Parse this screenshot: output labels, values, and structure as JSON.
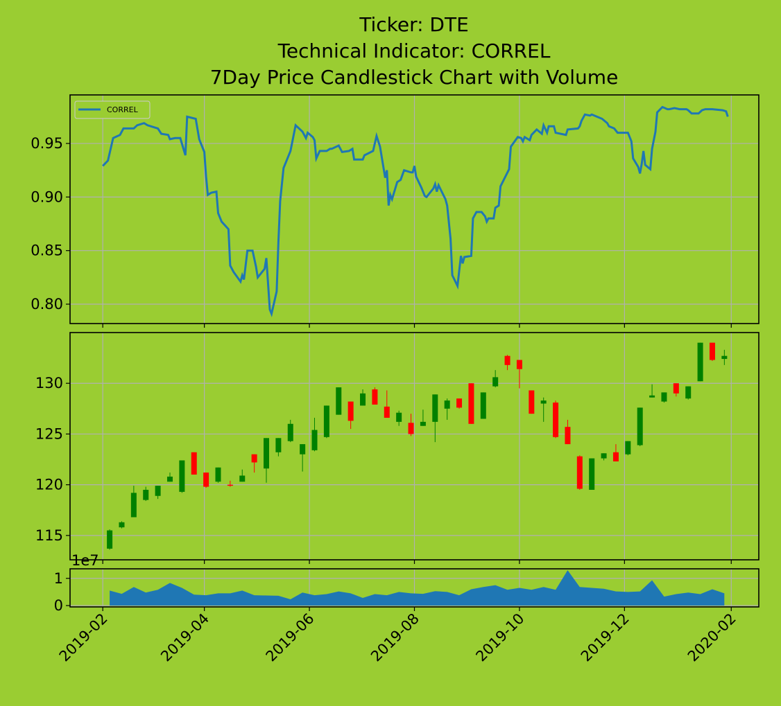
{
  "chart_data": [
    {
      "type": "line",
      "title": [
        "Ticker: DTE",
        "Technical Indicator: CORREL",
        "7Day Price Candlestick Chart with Volume"
      ],
      "xlim": [
        "2019-01-13",
        "2020-02-17"
      ],
      "xticks": [
        {
          "value": "2019-02-01",
          "label": "2019-02"
        },
        {
          "value": "2019-04-01",
          "label": "2019-04"
        },
        {
          "value": "2019-06-01",
          "label": "2019-06"
        },
        {
          "value": "2019-08-01",
          "label": "2019-08"
        },
        {
          "value": "2019-10-01",
          "label": "2019-10"
        },
        {
          "value": "2019-12-01",
          "label": "2019-12"
        },
        {
          "value": "2020-02-01",
          "label": "2020-02"
        }
      ],
      "ylim": [
        0.7819,
        0.9953
      ],
      "yticks": [
        {
          "value": 0.8,
          "label": "0.80"
        },
        0.85,
        {
          "value": 0.9,
          "label": "0.90"
        },
        0.95
      ],
      "grid": true,
      "legend": "upper left",
      "x": [
        "2019-02-01",
        "2019-02-04",
        "2019-02-07",
        "2019-02-11",
        "2019-02-13",
        "2019-02-19",
        "2019-02-21",
        "2019-02-25",
        "2019-02-27",
        "2019-03-05",
        "2019-03-07",
        "2019-03-11",
        "2019-03-12",
        "2019-03-15",
        "2019-03-18",
        "2019-03-21",
        "2019-03-22",
        "2019-03-27",
        "2019-03-29",
        "2019-04-01",
        "2019-04-02",
        "2019-04-03",
        "2019-04-05",
        "2019-04-08",
        "2019-04-09",
        "2019-04-11",
        "2019-04-15",
        "2019-04-16",
        "2019-04-18",
        "2019-04-22",
        "2019-04-23",
        "2019-04-24",
        "2019-04-26",
        "2019-04-29",
        "2019-05-01",
        "2019-05-02",
        "2019-05-06",
        "2019-05-07",
        "2019-05-09",
        "2019-05-10",
        "2019-05-13",
        "2019-05-14",
        "2019-05-15",
        "2019-05-17",
        "2019-05-21",
        "2019-05-24",
        "2019-05-28",
        "2019-05-30",
        "2019-05-31",
        "2019-06-03",
        "2019-06-04",
        "2019-06-05",
        "2019-06-07",
        "2019-06-11",
        "2019-06-13",
        "2019-06-14",
        "2019-06-18",
        "2019-06-20",
        "2019-06-24",
        "2019-06-26",
        "2019-06-27",
        "2019-07-02",
        "2019-07-03",
        "2019-07-08",
        "2019-07-10",
        "2019-07-12",
        "2019-07-15",
        "2019-07-16",
        "2019-07-17",
        "2019-07-18",
        "2019-07-19",
        "2019-07-22",
        "2019-07-24",
        "2019-07-26",
        "2019-07-30",
        "2019-07-31",
        "2019-08-01",
        "2019-08-02",
        "2019-08-05",
        "2019-08-07",
        "2019-08-08",
        "2019-08-12",
        "2019-08-13",
        "2019-08-14",
        "2019-08-15",
        "2019-08-19",
        "2019-08-20",
        "2019-08-22",
        "2019-08-23",
        "2019-08-26",
        "2019-08-28",
        "2019-08-29",
        "2019-08-30",
        "2019-09-03",
        "2019-09-04",
        "2019-09-06",
        "2019-09-09",
        "2019-09-11",
        "2019-09-12",
        "2019-09-13",
        "2019-09-16",
        "2019-09-17",
        "2019-09-19",
        "2019-09-20",
        "2019-09-25",
        "2019-09-26",
        "2019-09-30",
        "2019-10-02",
        "2019-10-03",
        "2019-10-04",
        "2019-10-07",
        "2019-10-08",
        "2019-10-11",
        "2019-10-14",
        "2019-10-15",
        "2019-10-17",
        "2019-10-18",
        "2019-10-21",
        "2019-10-22",
        "2019-10-28",
        "2019-10-29",
        "2019-11-04",
        "2019-11-05",
        "2019-11-06",
        "2019-11-08",
        "2019-11-11",
        "2019-11-12",
        "2019-11-15",
        "2019-11-18",
        "2019-11-21",
        "2019-11-22",
        "2019-11-25",
        "2019-11-27",
        "2019-12-03",
        "2019-12-05",
        "2019-12-06",
        "2019-12-09",
        "2019-12-10",
        "2019-12-11",
        "2019-12-12",
        "2019-12-13",
        "2019-12-16",
        "2019-12-17",
        "2019-12-19",
        "2019-12-20",
        "2019-12-23",
        "2019-12-26",
        "2019-12-27",
        "2019-12-30",
        "2020-01-02",
        "2020-01-06",
        "2020-01-07",
        "2020-01-09",
        "2020-01-13",
        "2020-01-15",
        "2020-01-17",
        "2020-01-21",
        "2020-01-27",
        "2020-01-29",
        "2020-01-30"
      ],
      "series": [
        {
          "name": "CORREL",
          "color": "#1f77b4",
          "values": [
            0.929,
            0.934,
            0.955,
            0.958,
            0.964,
            0.964,
            0.967,
            0.969,
            0.967,
            0.964,
            0.959,
            0.958,
            0.954,
            0.955,
            0.955,
            0.939,
            0.975,
            0.973,
            0.954,
            0.942,
            0.919,
            0.902,
            0.904,
            0.905,
            0.885,
            0.877,
            0.87,
            0.836,
            0.83,
            0.821,
            0.827,
            0.823,
            0.85,
            0.85,
            0.835,
            0.825,
            0.833,
            0.843,
            0.795,
            0.791,
            0.812,
            0.858,
            0.896,
            0.927,
            0.943,
            0.967,
            0.961,
            0.955,
            0.96,
            0.956,
            0.953,
            0.936,
            0.943,
            0.943,
            0.945,
            0.945,
            0.948,
            0.942,
            0.943,
            0.945,
            0.935,
            0.935,
            0.939,
            0.943,
            0.957,
            0.947,
            0.918,
            0.925,
            0.892,
            0.902,
            0.898,
            0.914,
            0.916,
            0.925,
            0.923,
            0.923,
            0.929,
            0.919,
            0.909,
            0.901,
            0.9,
            0.908,
            0.912,
            0.905,
            0.911,
            0.898,
            0.892,
            0.861,
            0.827,
            0.817,
            0.845,
            0.838,
            0.844,
            0.845,
            0.88,
            0.886,
            0.886,
            0.882,
            0.877,
            0.88,
            0.88,
            0.89,
            0.892,
            0.91,
            0.926,
            0.947,
            0.956,
            0.955,
            0.952,
            0.956,
            0.953,
            0.958,
            0.963,
            0.959,
            0.967,
            0.96,
            0.966,
            0.966,
            0.96,
            0.958,
            0.963,
            0.964,
            0.966,
            0.971,
            0.977,
            0.976,
            0.977,
            0.975,
            0.973,
            0.969,
            0.966,
            0.964,
            0.96,
            0.96,
            0.952,
            0.936,
            0.928,
            0.922,
            0.931,
            0.943,
            0.93,
            0.926,
            0.945,
            0.961,
            0.979,
            0.984,
            0.982,
            0.982,
            0.983,
            0.982,
            0.982,
            0.981,
            0.978,
            0.978,
            0.981,
            0.982,
            0.982,
            0.981,
            0.98,
            0.975
          ]
        }
      ]
    },
    {
      "type": "candlestick",
      "xlim": [
        "2019-01-13",
        "2020-02-17"
      ],
      "xticks": [
        {
          "value": "2019-02-01",
          "label": "2019-02"
        },
        {
          "value": "2019-04-01",
          "label": "2019-04"
        },
        {
          "value": "2019-06-01",
          "label": "2019-06"
        },
        {
          "value": "2019-08-01",
          "label": "2019-08"
        },
        {
          "value": "2019-10-01",
          "label": "2019-10"
        },
        {
          "value": "2019-12-01",
          "label": "2019-12"
        },
        {
          "value": "2020-02-01",
          "label": "2020-02"
        }
      ],
      "ylim": [
        112.6,
        135
      ],
      "yticks": [
        115,
        120,
        125,
        130
      ],
      "grid": true,
      "up_color": "#008000",
      "down_color": "#ff0000",
      "x": [
        "2019-02-05",
        "2019-02-12",
        "2019-02-19",
        "2019-02-26",
        "2019-03-05",
        "2019-03-12",
        "2019-03-19",
        "2019-03-26",
        "2019-04-02",
        "2019-04-09",
        "2019-04-16",
        "2019-04-23",
        "2019-04-30",
        "2019-05-07",
        "2019-05-14",
        "2019-05-21",
        "2019-05-28",
        "2019-06-04",
        "2019-06-11",
        "2019-06-18",
        "2019-06-25",
        "2019-07-02",
        "2019-07-09",
        "2019-07-16",
        "2019-07-23",
        "2019-07-30",
        "2019-08-06",
        "2019-08-13",
        "2019-08-20",
        "2019-08-27",
        "2019-09-03",
        "2019-09-10",
        "2019-09-17",
        "2019-09-24",
        "2019-10-01",
        "2019-10-08",
        "2019-10-15",
        "2019-10-22",
        "2019-10-29",
        "2019-11-05",
        "2019-11-12",
        "2019-11-19",
        "2019-11-26",
        "2019-12-03",
        "2019-12-10",
        "2019-12-17",
        "2019-12-24",
        "2019-12-31",
        "2020-01-07",
        "2020-01-14",
        "2020-01-21",
        "2020-01-28"
      ],
      "open": [
        113.7,
        115.8,
        116.8,
        118.5,
        118.9,
        120.3,
        119.3,
        123.2,
        121.2,
        120.3,
        120.0,
        120.3,
        123.0,
        121.6,
        123.2,
        124.3,
        123.0,
        123.4,
        124.7,
        126.9,
        128.2,
        127.8,
        129.4,
        127.7,
        126.2,
        126.1,
        125.8,
        126.2,
        127.5,
        128.5,
        130.0,
        126.5,
        129.7,
        132.7,
        132.3,
        129.3,
        128.0,
        128.1,
        125.7,
        122.8,
        119.5,
        122.6,
        123.2,
        123.0,
        123.9,
        128.6,
        128.2,
        130.0,
        128.5,
        130.2,
        134.0,
        132.4
      ],
      "high": [
        115.6,
        116.4,
        119.9,
        119.8,
        119.9,
        121.2,
        122.4,
        123.2,
        121.2,
        121.7,
        120.4,
        121.5,
        123.0,
        124.6,
        124.6,
        126.4,
        124.0,
        126.6,
        127.8,
        129.6,
        128.2,
        129.4,
        129.6,
        129.3,
        127.3,
        127.0,
        127.4,
        128.9,
        128.5,
        128.5,
        130.0,
        129.1,
        131.3,
        132.8,
        132.3,
        129.3,
        128.6,
        128.3,
        126.4,
        122.9,
        122.6,
        123.1,
        124.0,
        124.3,
        127.6,
        129.9,
        129.1,
        130.0,
        129.7,
        134.0,
        134.0,
        133.3
      ],
      "low": [
        113.6,
        115.7,
        116.8,
        118.4,
        118.6,
        120.3,
        119.2,
        121.0,
        119.7,
        120.2,
        119.8,
        120.3,
        121.2,
        120.2,
        122.8,
        124.2,
        121.3,
        123.3,
        124.6,
        126.9,
        125.5,
        127.8,
        127.9,
        126.6,
        125.8,
        124.8,
        125.8,
        124.2,
        126.4,
        127.5,
        126.0,
        126.5,
        129.6,
        131.3,
        129.5,
        127.0,
        126.2,
        124.6,
        124.0,
        119.5,
        119.5,
        122.4,
        122.3,
        122.9,
        123.8,
        128.6,
        128.1,
        128.7,
        128.4,
        130.2,
        132.2,
        131.8
      ],
      "close": [
        115.5,
        116.3,
        119.2,
        119.5,
        119.9,
        120.8,
        122.4,
        121.0,
        119.8,
        121.7,
        119.9,
        120.9,
        122.2,
        124.6,
        124.6,
        126.0,
        124.0,
        125.4,
        127.8,
        129.6,
        126.3,
        129.0,
        127.9,
        126.6,
        127.1,
        125.0,
        126.2,
        128.9,
        128.3,
        127.6,
        126.0,
        129.1,
        130.6,
        131.8,
        131.4,
        127.0,
        128.3,
        124.7,
        124.0,
        119.6,
        122.6,
        123.1,
        122.3,
        124.3,
        127.6,
        128.8,
        129.1,
        129.0,
        129.7,
        134.0,
        132.3,
        132.7
      ]
    },
    {
      "type": "area",
      "xlim": [
        "2019-01-13",
        "2020-02-17"
      ],
      "xticks": [
        {
          "value": "2019-02-01",
          "label": "2019-02"
        },
        {
          "value": "2019-04-01",
          "label": "2019-04"
        },
        {
          "value": "2019-06-01",
          "label": "2019-06"
        },
        {
          "value": "2019-08-01",
          "label": "2019-08"
        },
        {
          "value": "2019-10-01",
          "label": "2019-10"
        },
        {
          "value": "2019-12-01",
          "label": "2019-12"
        },
        {
          "value": "2020-02-01",
          "label": "2020-02"
        }
      ],
      "ylim": [
        -500000,
        13500000
      ],
      "yticks": [
        0,
        {
          "value": 10000000,
          "label": "1"
        }
      ],
      "offset_label": "1e7",
      "grid": true,
      "color": "#1f77b4",
      "x": [
        "2019-02-05",
        "2019-02-12",
        "2019-02-19",
        "2019-02-26",
        "2019-03-05",
        "2019-03-12",
        "2019-03-19",
        "2019-03-26",
        "2019-04-02",
        "2019-04-09",
        "2019-04-16",
        "2019-04-23",
        "2019-04-30",
        "2019-05-07",
        "2019-05-14",
        "2019-05-21",
        "2019-05-28",
        "2019-06-04",
        "2019-06-11",
        "2019-06-18",
        "2019-06-25",
        "2019-07-02",
        "2019-07-09",
        "2019-07-16",
        "2019-07-23",
        "2019-07-30",
        "2019-08-06",
        "2019-08-13",
        "2019-08-20",
        "2019-08-27",
        "2019-09-03",
        "2019-09-10",
        "2019-09-17",
        "2019-09-24",
        "2019-10-01",
        "2019-10-08",
        "2019-10-15",
        "2019-10-22",
        "2019-10-29",
        "2019-11-05",
        "2019-11-12",
        "2019-11-19",
        "2019-11-26",
        "2019-12-03",
        "2019-12-10",
        "2019-12-17",
        "2019-12-24",
        "2019-12-31",
        "2020-01-07",
        "2020-01-14",
        "2020-01-21",
        "2020-01-28"
      ],
      "values": [
        5500000,
        4300000,
        6800000,
        4800000,
        5800000,
        8300000,
        6500000,
        4000000,
        3800000,
        4500000,
        4500000,
        5500000,
        3800000,
        3700000,
        3600000,
        2300000,
        4800000,
        3800000,
        4200000,
        5200000,
        4500000,
        2800000,
        4200000,
        3800000,
        5000000,
        4500000,
        4300000,
        5300000,
        5000000,
        3800000,
        6000000,
        6800000,
        7500000,
        5800000,
        6500000,
        5800000,
        6800000,
        5800000,
        13000000,
        6800000,
        6500000,
        6200000,
        5200000,
        5000000,
        5200000,
        9300000,
        3300000,
        4200000,
        4800000,
        4200000,
        6000000,
        4500000
      ]
    }
  ]
}
